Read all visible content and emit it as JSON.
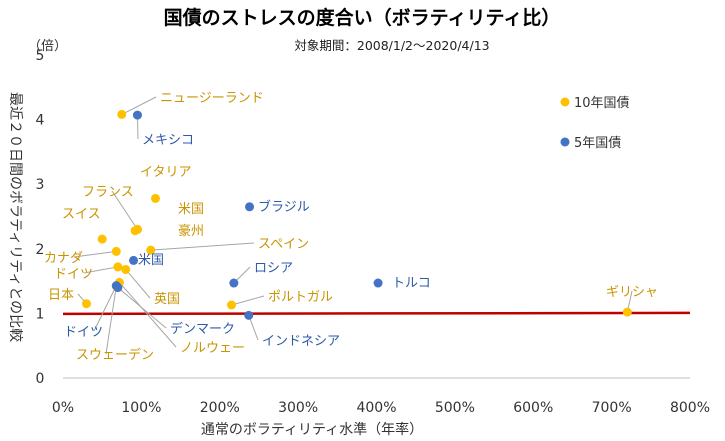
{
  "chart_data": {
    "type": "scatter",
    "title": "国債のストレスの度合い（ボラティリティ比）",
    "subtitle": "対象期間：2008/1/2～2020/4/13",
    "xlabel": "通常のボラティリティ水準（年率）",
    "ylabel": "最近２０日間のボラティリティとの比較",
    "y_unit_label": "（倍）",
    "xlim": [
      0,
      800
    ],
    "ylim": [
      0,
      5
    ],
    "x_ticks": [
      "0%",
      "100%",
      "200%",
      "300%",
      "400%",
      "500%",
      "600%",
      "700%",
      "800%"
    ],
    "y_ticks": [
      "0",
      "1",
      "2",
      "3",
      "4",
      "5"
    ],
    "grid": false,
    "legend_position": "top-right",
    "reference_line": {
      "y": 1.0,
      "color": "#c00000"
    },
    "colors": {
      "title": "#00b050",
      "series_10y": "#ffc000",
      "series_10y_label": "#c99400",
      "series_5y": "#4472c4",
      "series_5y_label": "#2e5aa8",
      "axis_text": "#333333",
      "leader_line": "#a6a6a6"
    },
    "series": [
      {
        "name": "10年国債",
        "points": [
          {
            "label": "ニュージーランド",
            "x": 75,
            "y": 4.08
          },
          {
            "label": "イタリア",
            "x": 118,
            "y": 2.78
          },
          {
            "label": "フランス",
            "x": 95,
            "y": 2.3
          },
          {
            "label": "米国",
            "x": 95,
            "y": 2.3
          },
          {
            "label": "豪州",
            "x": 92,
            "y": 2.28
          },
          {
            "label": "スイス",
            "x": 50,
            "y": 2.15
          },
          {
            "label": "スペイン",
            "x": 112,
            "y": 1.98
          },
          {
            "label": "カナダ",
            "x": 68,
            "y": 1.96
          },
          {
            "label": "ドイツ",
            "x": 70,
            "y": 1.72
          },
          {
            "label": "英国",
            "x": 80,
            "y": 1.68
          },
          {
            "label": "ノルウェー",
            "x": 72,
            "y": 1.48
          },
          {
            "label": "スウェーデン",
            "x": 68,
            "y": 1.42
          },
          {
            "label": "日本",
            "x": 30,
            "y": 1.15
          },
          {
            "label": "ポルトガル",
            "x": 215,
            "y": 1.13
          },
          {
            "label": "ギリシャ",
            "x": 720,
            "y": 1.02
          }
        ]
      },
      {
        "name": "5年国債",
        "points": [
          {
            "label": "メキシコ",
            "x": 95,
            "y": 4.07
          },
          {
            "label": "ブラジル",
            "x": 238,
            "y": 2.65
          },
          {
            "label": "米国",
            "x": 90,
            "y": 1.82
          },
          {
            "label": "ロシア",
            "x": 218,
            "y": 1.47
          },
          {
            "label": "トルコ",
            "x": 402,
            "y": 1.47
          },
          {
            "label": "ドイツ",
            "x": 68,
            "y": 1.43
          },
          {
            "label": "デンマーク",
            "x": 70,
            "y": 1.4
          },
          {
            "label": "インドネシア",
            "x": 237,
            "y": 0.97
          }
        ]
      }
    ]
  }
}
